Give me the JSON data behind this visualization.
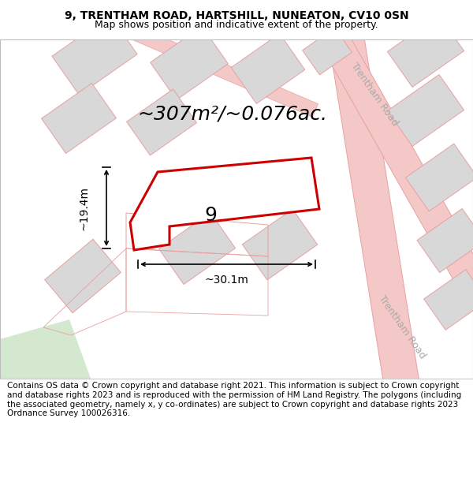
{
  "title_line1": "9, TRENTHAM ROAD, HARTSHILL, NUNEATON, CV10 0SN",
  "title_line2": "Map shows position and indicative extent of the property.",
  "area_text": "~307m²/~0.076ac.",
  "number_label": "9",
  "dim_width": "~30.1m",
  "dim_height": "~19.4m",
  "road_label_top": "Trentham Road",
  "road_label_bottom": "Trentham Road",
  "footer_text": "Contains OS data © Crown copyright and database right 2021. This information is subject to Crown copyright and database rights 2023 and is reproduced with the permission of HM Land Registry. The polygons (including the associated geometry, namely x, y co-ordinates) are subject to Crown copyright and database rights 2023 Ordnance Survey 100026316.",
  "bg_color": "#ffffff",
  "map_bg": "#ffffff",
  "building_fill": "#d8d8d8",
  "building_stroke": "#e8a0a0",
  "road_color": "#f5c8c8",
  "highlight_fill": "#ffffff",
  "highlight_stroke": "#cc0000",
  "green_fill": "#d4e8d0",
  "title_fontsize": 10,
  "subtitle_fontsize": 9,
  "area_fontsize": 18,
  "number_fontsize": 18,
  "dim_fontsize": 10,
  "road_fontsize": 9,
  "footer_fontsize": 7.5
}
